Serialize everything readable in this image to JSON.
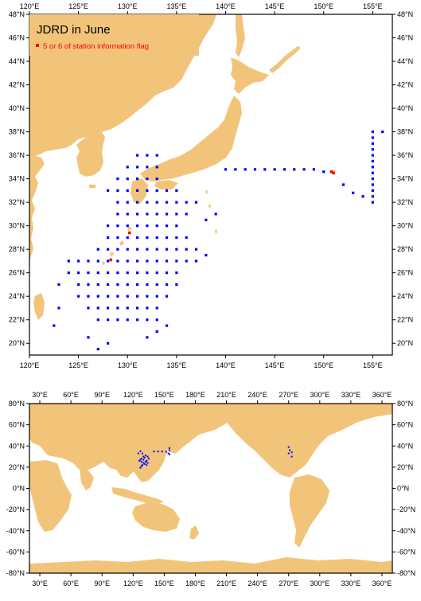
{
  "colors": {
    "land": "#f2c47a",
    "ocean": "#ffffff",
    "station": "#0000ff",
    "flagged": "#ff0000",
    "frame": "#000000"
  },
  "regional_map": {
    "title": "JDRD in June",
    "legend_label": "5 or 6 of station information flag",
    "lon_range": [
      120,
      157
    ],
    "lat_range": [
      19,
      48
    ],
    "x_ticks": [
      "120°E",
      "125°E",
      "130°E",
      "135°E",
      "140°E",
      "145°E",
      "150°E",
      "155°E"
    ],
    "y_ticks": [
      "20°N",
      "22°N",
      "24°N",
      "26°N",
      "28°N",
      "30°N",
      "32°N",
      "34°N",
      "36°N",
      "38°N",
      "40°N",
      "42°N",
      "44°N",
      "46°N",
      "48°N"
    ]
  },
  "global_map": {
    "lon_range": [
      20,
      370
    ],
    "lat_range": [
      -80,
      80
    ],
    "x_ticks": [
      "30°E",
      "60°E",
      "90°E",
      "120°E",
      "150°E",
      "180°E",
      "210°E",
      "240°E",
      "270°E",
      "300°E",
      "330°E",
      "360°E"
    ],
    "y_ticks": [
      "80°N",
      "60°N",
      "40°N",
      "20°N",
      "0°N",
      "-20°N",
      "-40°N",
      "-60°N",
      "-80°N"
    ]
  },
  "chart_data": [
    {
      "type": "scatter",
      "title": "JDRD in June",
      "series": [
        {
          "name": "",
          "points": [
            [
              124,
              27
            ],
            [
              125,
              27
            ],
            [
              126,
              27
            ],
            [
              127,
              27
            ],
            [
              128,
              27
            ],
            [
              129,
              27
            ],
            [
              130,
              27
            ],
            [
              131,
              27
            ],
            [
              132,
              27
            ],
            [
              133,
              27
            ],
            [
              134,
              27
            ],
            [
              135,
              27
            ],
            [
              136,
              27
            ],
            [
              124,
              26
            ],
            [
              125,
              26
            ],
            [
              126,
              26
            ],
            [
              127,
              26
            ],
            [
              128,
              26
            ],
            [
              129,
              26
            ],
            [
              130,
              26
            ],
            [
              131,
              26
            ],
            [
              132,
              26
            ],
            [
              133,
              26
            ],
            [
              134,
              26
            ],
            [
              135,
              26
            ],
            [
              125,
              25
            ],
            [
              126,
              25
            ],
            [
              127,
              25
            ],
            [
              128,
              25
            ],
            [
              129,
              25
            ],
            [
              130,
              25
            ],
            [
              131,
              25
            ],
            [
              132,
              25
            ],
            [
              133,
              25
            ],
            [
              134,
              25
            ],
            [
              135,
              25
            ],
            [
              125,
              24
            ],
            [
              126,
              24
            ],
            [
              127,
              24
            ],
            [
              128,
              24
            ],
            [
              129,
              24
            ],
            [
              130,
              24
            ],
            [
              131,
              24
            ],
            [
              132,
              24
            ],
            [
              133,
              24
            ],
            [
              134,
              24
            ],
            [
              126,
              23
            ],
            [
              127,
              23
            ],
            [
              128,
              23
            ],
            [
              129,
              23
            ],
            [
              130,
              23
            ],
            [
              131,
              23
            ],
            [
              132,
              23
            ],
            [
              133,
              23
            ],
            [
              127,
              22
            ],
            [
              128,
              22
            ],
            [
              129,
              22
            ],
            [
              130,
              22
            ],
            [
              131,
              22
            ],
            [
              132,
              22
            ],
            [
              133,
              22
            ],
            [
              127,
              28
            ],
            [
              128,
              28
            ],
            [
              129,
              28
            ],
            [
              130,
              28
            ],
            [
              131,
              28
            ],
            [
              132,
              28
            ],
            [
              133,
              28
            ],
            [
              134,
              28
            ],
            [
              135,
              28
            ],
            [
              136,
              28
            ],
            [
              137,
              28
            ],
            [
              128,
              29
            ],
            [
              129,
              29
            ],
            [
              130,
              29
            ],
            [
              131,
              29
            ],
            [
              132,
              29
            ],
            [
              133,
              29
            ],
            [
              134,
              29
            ],
            [
              135,
              29
            ],
            [
              136,
              29
            ],
            [
              128,
              30
            ],
            [
              129,
              30
            ],
            [
              130,
              30
            ],
            [
              131,
              30
            ],
            [
              132,
              30
            ],
            [
              133,
              30
            ],
            [
              134,
              30
            ],
            [
              135,
              30
            ],
            [
              129,
              31
            ],
            [
              130,
              31
            ],
            [
              131,
              31
            ],
            [
              132,
              31
            ],
            [
              133,
              31
            ],
            [
              134,
              31
            ],
            [
              135,
              31
            ],
            [
              136,
              31
            ],
            [
              129,
              32
            ],
            [
              130,
              32
            ],
            [
              131,
              32
            ],
            [
              132,
              32
            ],
            [
              133,
              32
            ],
            [
              134,
              32
            ],
            [
              135,
              32
            ],
            [
              136,
              32
            ],
            [
              137,
              32
            ],
            [
              128,
              33
            ],
            [
              129,
              33
            ],
            [
              130,
              33
            ],
            [
              131,
              33
            ],
            [
              132,
              33
            ],
            [
              133,
              33
            ],
            [
              134,
              33
            ],
            [
              135,
              33
            ],
            [
              129,
              34
            ],
            [
              130,
              34
            ],
            [
              131,
              34
            ],
            [
              132,
              34
            ],
            [
              133,
              34
            ],
            [
              130,
              35
            ],
            [
              131,
              35
            ],
            [
              132,
              35
            ],
            [
              133,
              35
            ],
            [
              131,
              36
            ],
            [
              132,
              36
            ],
            [
              133,
              36
            ],
            [
              123,
              25
            ],
            [
              123,
              23
            ],
            [
              122.5,
              21.5
            ],
            [
              126,
              20.5
            ],
            [
              127,
              19.5
            ],
            [
              128,
              20
            ],
            [
              132,
              20.5
            ],
            [
              133,
              21
            ],
            [
              134,
              21.5
            ],
            [
              137,
              27
            ],
            [
              138,
              27.5
            ],
            [
              138,
              30.5
            ],
            [
              139,
              31
            ],
            [
              140,
              34.8
            ],
            [
              141,
              34.8
            ],
            [
              142,
              34.8
            ],
            [
              143,
              34.8
            ],
            [
              144,
              34.8
            ],
            [
              145,
              34.8
            ],
            [
              146,
              34.8
            ],
            [
              147,
              34.8
            ],
            [
              148,
              34.8
            ],
            [
              149,
              34.8
            ],
            [
              150,
              34.6
            ],
            [
              152,
              33.5
            ],
            [
              153,
              32.8
            ],
            [
              154,
              32.5
            ],
            [
              155,
              32
            ],
            [
              155,
              32.5
            ],
            [
              155,
              33
            ],
            [
              155,
              33.5
            ],
            [
              155,
              34
            ],
            [
              155,
              34.5
            ],
            [
              155,
              35
            ],
            [
              155,
              35.5
            ],
            [
              155,
              36
            ],
            [
              155,
              36.5
            ],
            [
              155,
              37
            ],
            [
              155,
              37.5
            ],
            [
              155,
              38
            ],
            [
              156,
              38
            ]
          ]
        },
        {
          "name": "5 or 6 of station information flag",
          "points": [
            [
              130.2,
              29.4
            ],
            [
              128.3,
              27.1
            ],
            [
              150.8,
              34.6
            ],
            [
              151,
              34.5
            ]
          ]
        }
      ]
    },
    {
      "type": "scatter",
      "series": [
        {
          "name": "",
          "points": [
            [
              125,
              33
            ],
            [
              127,
              35
            ],
            [
              129,
              33
            ],
            [
              130,
              30
            ],
            [
              128,
              28
            ],
            [
              127,
              27
            ],
            [
              126,
              26
            ],
            [
              128,
              25
            ],
            [
              130,
              24
            ],
            [
              131,
              23
            ],
            [
              129,
              22
            ],
            [
              133,
              26
            ],
            [
              135,
              28
            ],
            [
              134,
              30
            ],
            [
              132,
              31
            ],
            [
              131,
              29
            ],
            [
              130,
              27
            ],
            [
              132,
              25
            ],
            [
              134,
              24
            ],
            [
              133,
              22
            ],
            [
              128,
              21
            ],
            [
              127,
              19.5
            ],
            [
              140,
              34.8
            ],
            [
              144,
              34.8
            ],
            [
              148,
              34.8
            ],
            [
              152,
              34.5
            ],
            [
              154,
              33
            ],
            [
              155,
              32
            ],
            [
              155,
              36
            ],
            [
              155,
              38
            ],
            [
              270,
              33
            ],
            [
              271,
              36
            ],
            [
              270,
              39
            ],
            [
              273,
              34
            ],
            [
              273,
              30
            ]
          ]
        }
      ]
    }
  ]
}
